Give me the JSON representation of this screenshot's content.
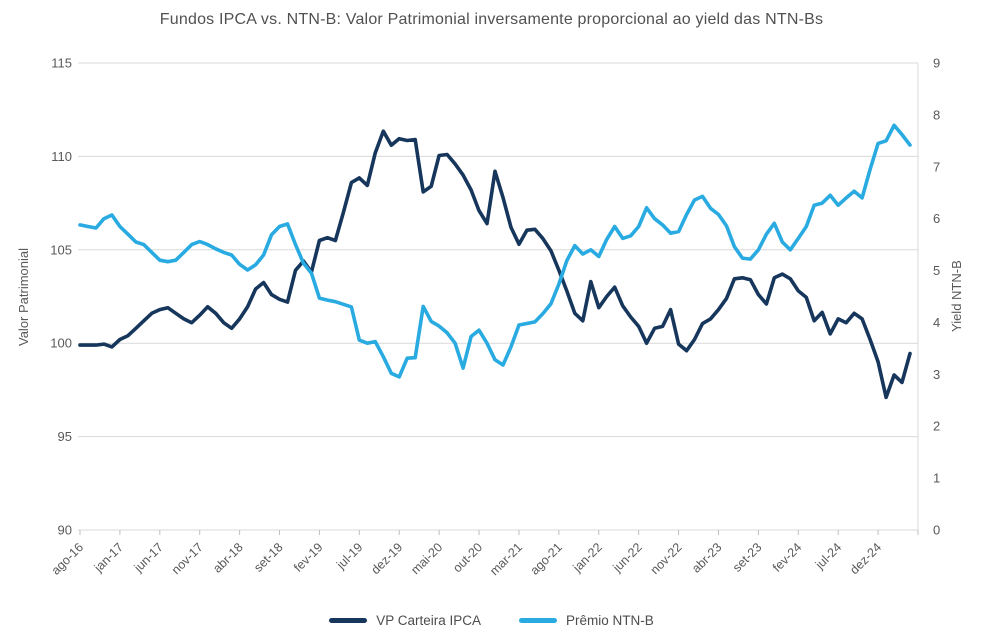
{
  "title": "Fundos IPCA vs. NTN-B: Valor Patrimonial inversamente proporcional ao yield das NTN-Bs",
  "y_left_axis": {
    "title": "Valor Patrimonial",
    "ticks": [
      90,
      95,
      100,
      105,
      110,
      115
    ],
    "min": 90,
    "max": 115
  },
  "y_right_axis": {
    "title": "Yield NTN-B",
    "ticks": [
      0,
      1,
      2,
      3,
      4,
      5,
      6,
      7,
      8,
      9
    ],
    "min": 0,
    "max": 9
  },
  "x_axis": {
    "tick_labels": [
      "ago-16",
      "jan-17",
      "jun-17",
      "nov-17",
      "abr-18",
      "set-18",
      "fev-19",
      "jul-19",
      "dez-19",
      "mai-20",
      "out-20",
      "mar-21",
      "ago-21",
      "jan-22",
      "jun-22",
      "nov-22",
      "abr-23",
      "set-23",
      "fev-24",
      "jul-24",
      "dez-24"
    ],
    "label_interval": 5
  },
  "colors": {
    "vp_line": "#16365C",
    "premio_line": "#29ABE2",
    "gridline": "#D9D9D9",
    "tick_mark": "#BFBFBF",
    "axis_text": "#595959",
    "title_text": "#515151"
  },
  "chart_data": {
    "type": "line",
    "title": "Fundos IPCA vs. NTN-B: Valor Patrimonial inversamente proporcional ao yield das NTN-Bs",
    "xlabel": "",
    "ylabel_left": "Valor Patrimonial",
    "ylabel_right": "Yield NTN-B",
    "y_left_range": [
      90,
      115
    ],
    "y_right_range": [
      0,
      9
    ],
    "grid": true,
    "legend_position": "bottom",
    "categories": [
      "ago-16",
      "set-16",
      "out-16",
      "nov-16",
      "dez-16",
      "jan-17",
      "fev-17",
      "mar-17",
      "abr-17",
      "mai-17",
      "jun-17",
      "jul-17",
      "ago-17",
      "set-17",
      "out-17",
      "nov-17",
      "dez-17",
      "jan-18",
      "fev-18",
      "mar-18",
      "abr-18",
      "mai-18",
      "jun-18",
      "jul-18",
      "ago-18",
      "set-18",
      "out-18",
      "nov-18",
      "dez-18",
      "jan-19",
      "fev-19",
      "mar-19",
      "abr-19",
      "mai-19",
      "jun-19",
      "jul-19",
      "ago-19",
      "set-19",
      "out-19",
      "nov-19",
      "dez-19",
      "jan-20",
      "fev-20",
      "mar-20",
      "abr-20",
      "mai-20",
      "jun-20",
      "jul-20",
      "ago-20",
      "set-20",
      "out-20",
      "nov-20",
      "dez-20",
      "jan-21",
      "fev-21",
      "mar-21",
      "abr-21",
      "mai-21",
      "jun-21",
      "jul-21",
      "ago-21",
      "set-21",
      "out-21",
      "nov-21",
      "dez-21",
      "jan-22",
      "fev-22",
      "mar-22",
      "abr-22",
      "mai-22",
      "jun-22",
      "jul-22",
      "ago-22",
      "set-22",
      "out-22",
      "nov-22",
      "dez-22",
      "jan-23",
      "fev-23",
      "mar-23",
      "abr-23",
      "mai-23",
      "jun-23",
      "jul-23",
      "ago-23",
      "set-23",
      "out-23",
      "nov-23",
      "dez-23",
      "jan-24",
      "fev-24",
      "mar-24",
      "abr-24",
      "mai-24",
      "jun-24",
      "jul-24",
      "ago-24",
      "set-24",
      "out-24",
      "nov-24",
      "dez-24",
      "jan-25",
      "fev-25",
      "mar-25",
      "abr-25"
    ],
    "series": [
      {
        "name": "VP Carteira IPCA",
        "axis": "left",
        "color": "#16365C",
        "values": [
          99.9,
          99.9,
          99.9,
          99.95,
          99.8,
          100.2,
          100.4,
          100.8,
          101.2,
          101.6,
          101.8,
          101.9,
          101.6,
          101.3,
          101.1,
          101.5,
          101.95,
          101.6,
          101.1,
          100.8,
          101.3,
          101.95,
          102.9,
          103.25,
          102.6,
          102.35,
          102.2,
          103.9,
          104.4,
          103.8,
          105.5,
          105.65,
          105.5,
          107.0,
          108.6,
          108.85,
          108.45,
          110.2,
          111.35,
          110.6,
          110.95,
          110.85,
          110.9,
          108.1,
          108.4,
          110.05,
          110.1,
          109.6,
          109.0,
          108.2,
          107.1,
          106.4,
          109.2,
          107.8,
          106.2,
          105.3,
          106.05,
          106.1,
          105.6,
          104.95,
          103.9,
          102.8,
          101.6,
          101.2,
          103.3,
          101.9,
          102.5,
          103.0,
          102.0,
          101.4,
          100.9,
          100.0,
          100.8,
          100.9,
          101.8,
          99.95,
          99.6,
          100.2,
          101.05,
          101.3,
          101.8,
          102.4,
          103.45,
          103.5,
          103.4,
          102.6,
          102.1,
          103.5,
          103.7,
          103.45,
          102.8,
          102.45,
          101.2,
          101.65,
          100.5,
          101.3,
          101.1,
          101.6,
          101.3,
          100.2,
          99.0,
          97.1,
          98.3,
          97.9,
          99.45
        ]
      },
      {
        "name": "Prêmio NTN-B",
        "axis": "right",
        "color": "#29ABE2",
        "values": [
          5.88,
          5.85,
          5.82,
          6.0,
          6.07,
          5.85,
          5.7,
          5.55,
          5.5,
          5.35,
          5.2,
          5.17,
          5.2,
          5.35,
          5.5,
          5.56,
          5.5,
          5.42,
          5.35,
          5.3,
          5.12,
          5.01,
          5.11,
          5.3,
          5.69,
          5.85,
          5.9,
          5.5,
          5.14,
          4.95,
          4.47,
          4.43,
          4.4,
          4.35,
          4.3,
          3.66,
          3.6,
          3.63,
          3.34,
          3.02,
          2.95,
          3.31,
          3.32,
          4.31,
          4.02,
          3.93,
          3.8,
          3.6,
          3.12,
          3.73,
          3.85,
          3.6,
          3.28,
          3.18,
          3.53,
          3.95,
          3.98,
          4.01,
          4.17,
          4.36,
          4.74,
          5.19,
          5.48,
          5.32,
          5.4,
          5.27,
          5.6,
          5.85,
          5.62,
          5.67,
          5.85,
          6.21,
          6.0,
          5.88,
          5.72,
          5.75,
          6.08,
          6.36,
          6.43,
          6.2,
          6.08,
          5.86,
          5.46,
          5.24,
          5.22,
          5.4,
          5.7,
          5.91,
          5.55,
          5.4,
          5.62,
          5.85,
          6.26,
          6.3,
          6.45,
          6.26,
          6.4,
          6.53,
          6.4,
          6.95,
          7.45,
          7.5,
          7.8,
          7.62,
          7.42
        ]
      }
    ]
  }
}
